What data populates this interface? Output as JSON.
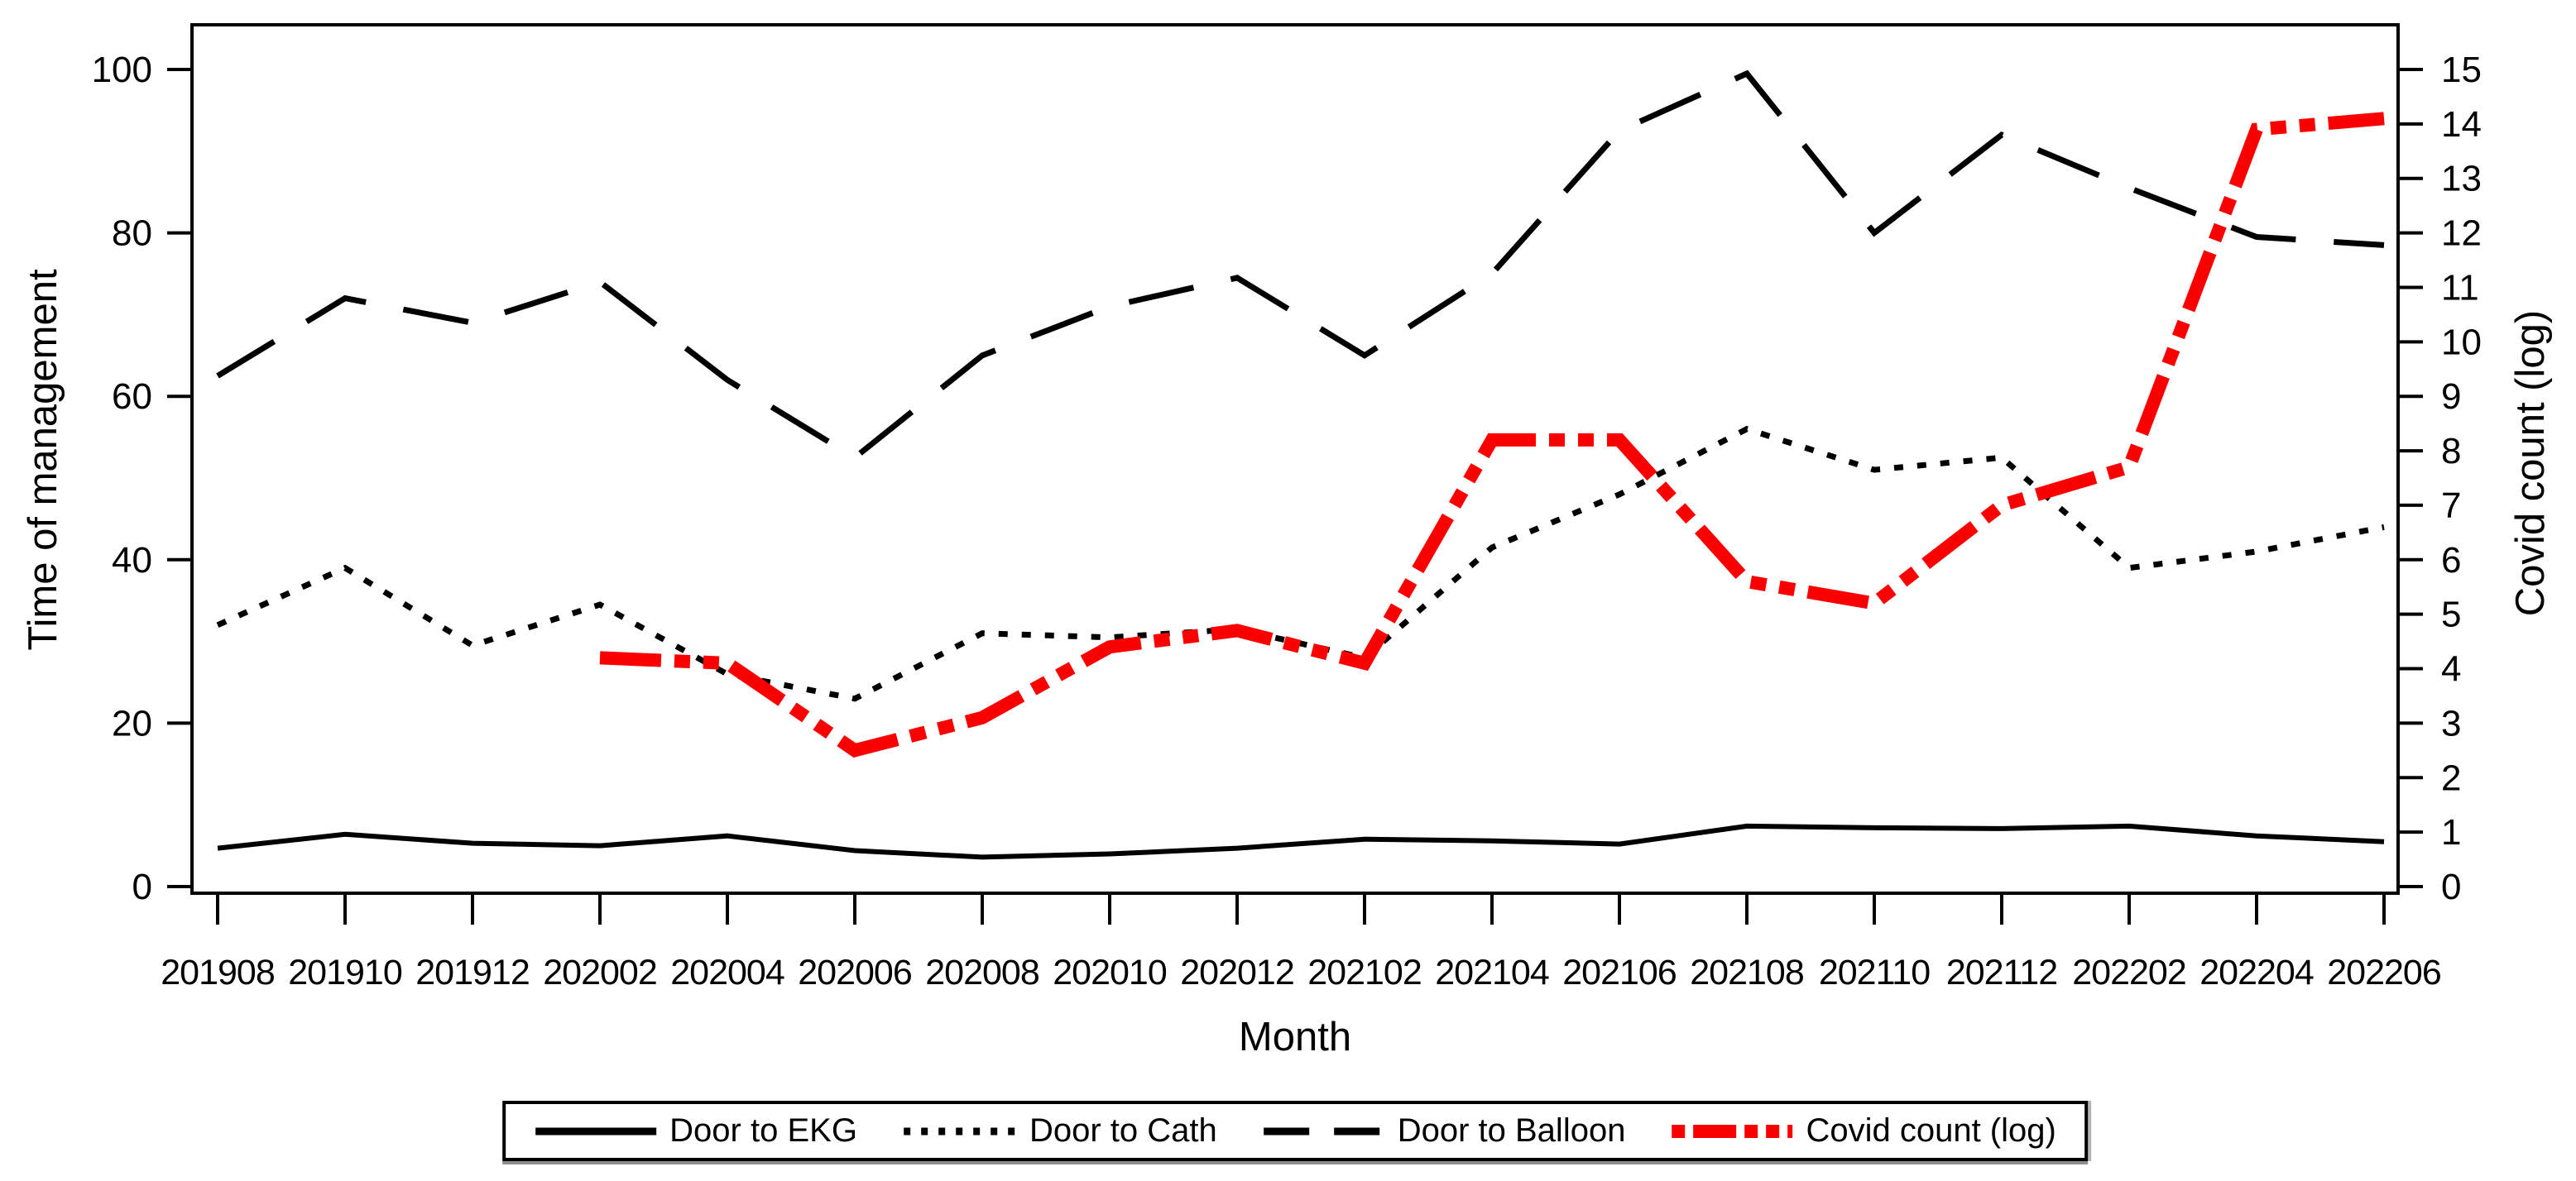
{
  "chart_data": {
    "type": "line",
    "xlabel": "Month",
    "grid": "off",
    "legend_position": "bottom",
    "categories": [
      "201908",
      "201910",
      "201912",
      "202002",
      "202004",
      "202006",
      "202008",
      "202010",
      "202012",
      "202102",
      "202104",
      "202106",
      "202108",
      "202110",
      "202112",
      "202202",
      "202204",
      "202206"
    ],
    "left_axis": {
      "label": "Time of management",
      "range": [
        0,
        100
      ],
      "ticks": [
        0,
        20,
        40,
        60,
        80,
        100
      ]
    },
    "right_axis": {
      "label": "Covid count (log)",
      "range": [
        0,
        15
      ],
      "ticks": [
        0,
        1,
        2,
        3,
        4,
        5,
        6,
        7,
        8,
        9,
        10,
        11,
        12,
        13,
        14,
        15
      ]
    },
    "series": [
      {
        "name": "Door to EKG",
        "axis": "left",
        "style": "solid",
        "color": "#000000",
        "values": [
          4.7,
          6.4,
          5.3,
          5.0,
          6.2,
          4.4,
          3.6,
          4.0,
          4.7,
          5.8,
          5.6,
          5.2,
          7.4,
          7.2,
          7.1,
          7.4,
          6.2,
          5.5
        ]
      },
      {
        "name": "Door to Cath",
        "axis": "left",
        "style": "dotted",
        "color": "#000000",
        "values": [
          32,
          39,
          29.5,
          34.5,
          26,
          23,
          31,
          30.5,
          31.5,
          28,
          41.5,
          48,
          56,
          51,
          52.5,
          39,
          41,
          44
        ]
      },
      {
        "name": "Door to Balloon",
        "axis": "left",
        "style": "long-dash",
        "color": "#000000",
        "values": [
          62.5,
          72,
          69,
          74,
          62,
          52.5,
          65,
          71,
          74.5,
          65,
          75,
          92.5,
          99.5,
          80,
          92,
          85.5,
          79.5,
          78.5
        ]
      },
      {
        "name": "Covid count (log)",
        "axis": "right",
        "style": "thick-dash-dot",
        "color": "#fb0000",
        "values": [
          null,
          null,
          null,
          4.2,
          4.1,
          2.5,
          3.1,
          4.4,
          4.7,
          4.1,
          8.2,
          8.2,
          5.6,
          5.2,
          7.0,
          7.7,
          13.9,
          14.1
        ]
      }
    ]
  }
}
